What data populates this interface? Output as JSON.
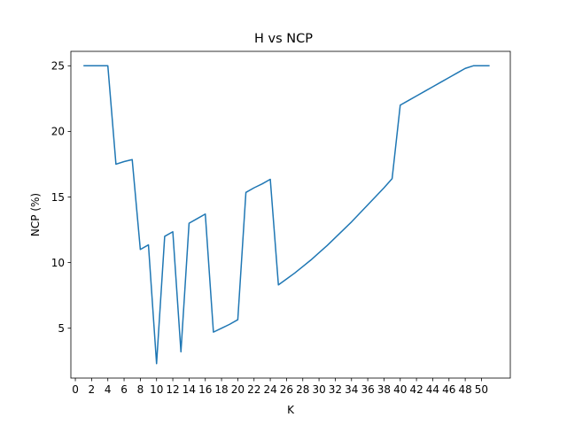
{
  "chart_data": {
    "type": "line",
    "title": "H vs NCP",
    "xlabel": "K",
    "ylabel": "NCP (%)",
    "xlim": [
      -0.55,
      53.55
    ],
    "ylim": [
      1.2,
      26.1
    ],
    "xticks": [
      0,
      2,
      4,
      6,
      8,
      10,
      12,
      14,
      16,
      18,
      20,
      22,
      24,
      26,
      28,
      30,
      32,
      34,
      36,
      38,
      40,
      42,
      44,
      46,
      48,
      50
    ],
    "yticks": [
      5,
      10,
      15,
      20,
      25
    ],
    "grid": false,
    "legend": "none",
    "color": "#1f77b4",
    "series": [
      {
        "x": [
          1,
          2,
          3,
          4,
          5,
          6,
          7,
          8,
          9,
          10,
          11,
          12,
          13,
          14,
          15,
          16,
          17,
          18,
          19,
          20,
          21,
          22,
          23,
          24,
          25,
          26,
          27,
          28,
          29,
          30,
          31,
          32,
          33,
          34,
          35,
          36,
          37,
          38,
          39,
          40,
          41,
          42,
          43,
          44,
          45,
          46,
          47,
          48,
          49,
          50,
          51
        ],
        "values": [
          25,
          25,
          25,
          25,
          17.5,
          17.7,
          17.85,
          11,
          11.35,
          2.3,
          12,
          12.35,
          3.2,
          13,
          13.35,
          13.7,
          4.7,
          5,
          5.3,
          5.65,
          15.35,
          15.7,
          16,
          16.35,
          8.3,
          8.75,
          9.2,
          9.7,
          10.2,
          10.75,
          11.3,
          11.9,
          12.5,
          13.1,
          13.75,
          14.4,
          15.05,
          15.7,
          16.4,
          22,
          22.35,
          22.7,
          23.05,
          23.4,
          23.75,
          24.1,
          24.45,
          24.8,
          25,
          25,
          25
        ]
      }
    ]
  }
}
